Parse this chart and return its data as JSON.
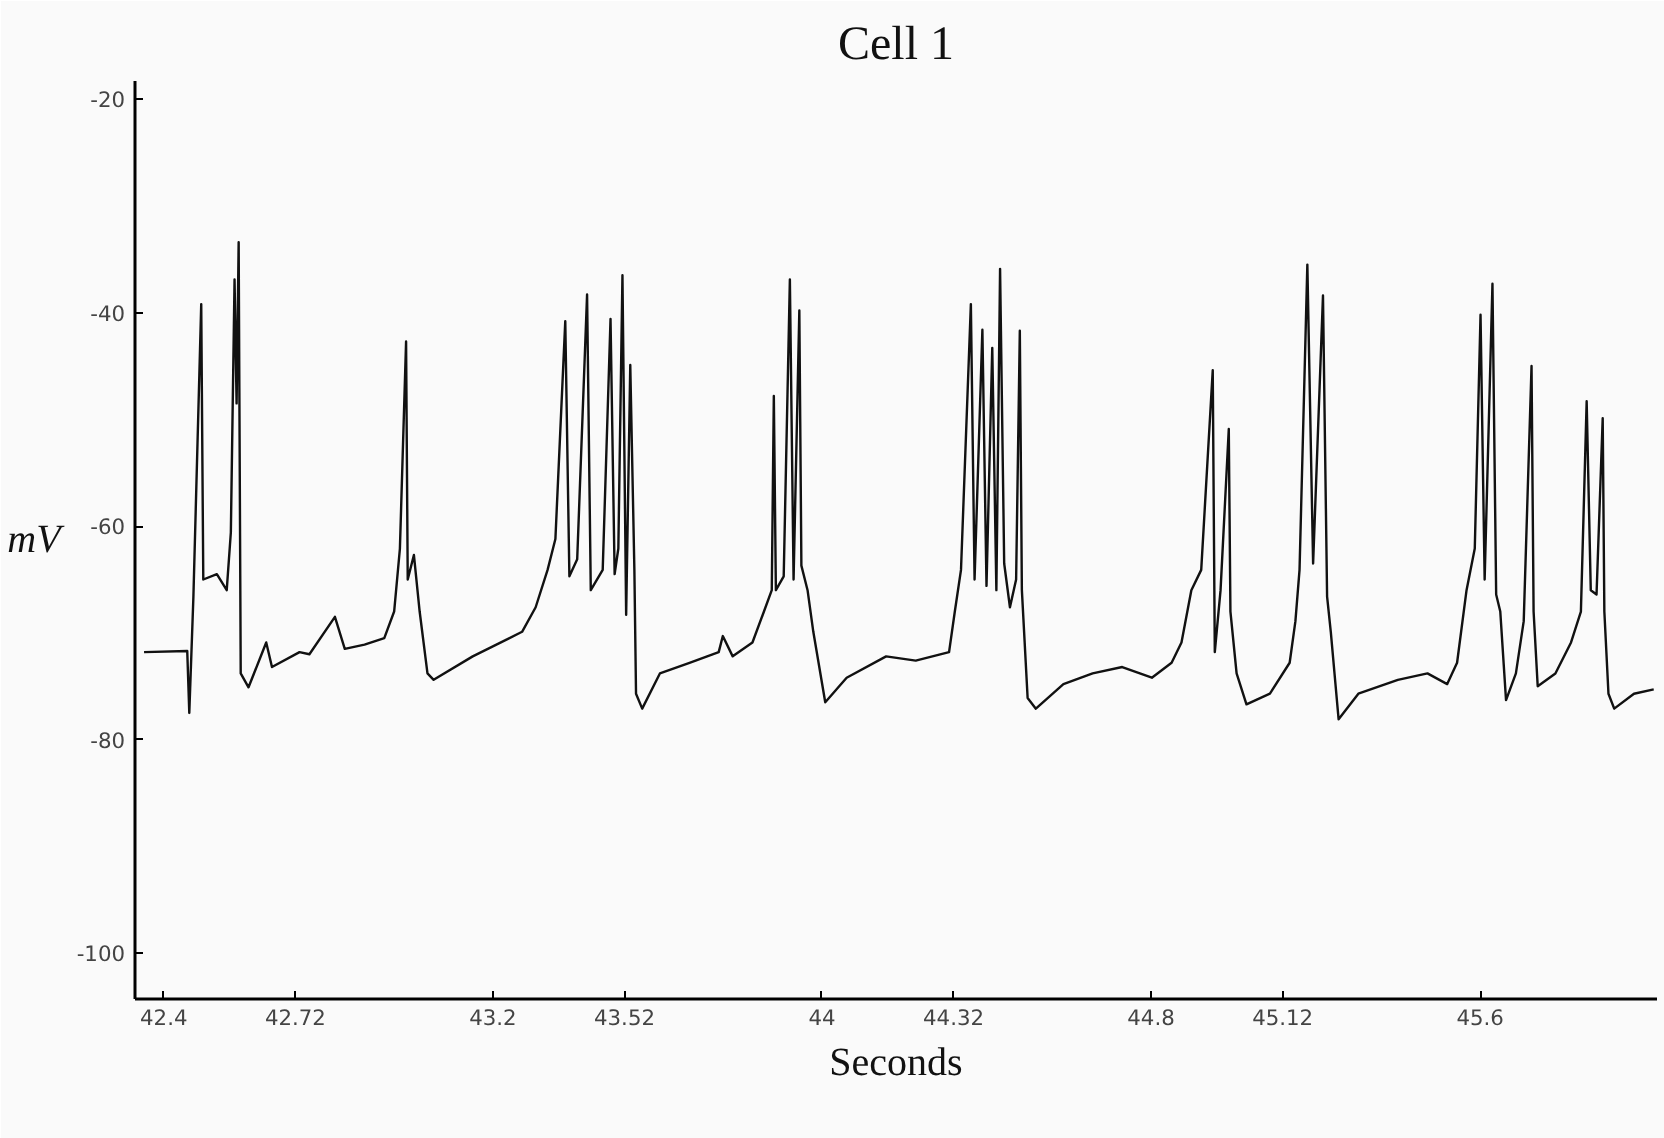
{
  "chart_data": {
    "type": "line",
    "title": "Cell 1",
    "xlabel": "Seconds",
    "ylabel": "mV",
    "xlim": [
      42.33,
      46.03
    ],
    "ylim": [
      -104.3,
      -18.3
    ],
    "xticks": [
      42.4,
      42.72,
      43.2,
      43.52,
      44,
      44.32,
      44.8,
      45.12,
      45.6
    ],
    "yticks": [
      -20,
      -40,
      -60,
      -80,
      -100
    ],
    "grid": false,
    "marker": "none",
    "line_style": "solid",
    "series": [
      {
        "color": "#111111",
        "x": [
          42.352,
          42.457,
          42.462,
          42.472,
          42.491,
          42.496,
          42.529,
          42.553,
          42.563,
          42.572,
          42.577,
          42.582,
          42.587,
          42.606,
          42.649,
          42.663,
          42.73,
          42.754,
          42.816,
          42.84,
          42.888,
          42.936,
          42.96,
          42.974,
          42.989,
          42.993,
          43.008,
          43.022,
          43.041,
          43.056,
          43.151,
          43.271,
          43.304,
          43.333,
          43.352,
          43.376,
          43.386,
          43.405,
          43.429,
          43.438,
          43.467,
          43.486,
          43.496,
          43.505,
          43.515,
          43.524,
          43.534,
          43.544,
          43.548,
          43.563,
          43.606,
          43.678,
          43.749,
          43.759,
          43.783,
          43.831,
          43.859,
          43.878,
          43.883,
          43.888,
          43.907,
          43.922,
          43.931,
          43.945,
          43.95,
          43.965,
          43.979,
          44.008,
          44.06,
          44.156,
          44.228,
          44.309,
          44.323,
          44.338,
          44.362,
          44.371,
          44.39,
          44.4,
          44.414,
          44.424,
          44.433,
          44.443,
          44.457,
          44.472,
          44.481,
          44.486,
          44.5,
          44.52,
          44.587,
          44.658,
          44.73,
          44.802,
          44.85,
          44.874,
          44.898,
          44.922,
          44.95,
          44.955,
          44.969,
          44.989,
          44.993,
          45.008,
          45.032,
          45.089,
          45.137,
          45.151,
          45.161,
          45.18,
          45.194,
          45.218,
          45.228,
          45.237,
          45.256,
          45.304,
          45.4,
          45.472,
          45.52,
          45.544,
          45.567,
          45.587,
          45.601,
          45.611,
          45.63,
          45.639,
          45.649,
          45.663,
          45.687,
          45.706,
          45.725,
          45.73,
          45.74,
          45.783,
          45.821,
          45.845,
          45.859,
          45.869,
          45.883,
          45.898,
          45.902,
          45.912,
          45.926,
          45.974,
          46.022
        ],
        "values": [
          -71.8,
          -71.7,
          -77.5,
          -66.6,
          -39.2,
          -65.0,
          -64.5,
          -66.0,
          -60.6,
          -36.9,
          -48.5,
          -33.4,
          -73.8,
          -75.1,
          -70.9,
          -73.2,
          -71.8,
          -72.0,
          -68.5,
          -71.5,
          -71.1,
          -70.5,
          -68.0,
          -62.1,
          -42.7,
          -65.0,
          -62.7,
          -68.0,
          -73.8,
          -74.4,
          -72.2,
          -69.9,
          -67.6,
          -64.1,
          -61.2,
          -40.8,
          -64.7,
          -63.1,
          -38.3,
          -66.0,
          -64.1,
          -40.6,
          -64.5,
          -62.1,
          -36.5,
          -68.3,
          -44.9,
          -64.1,
          -75.7,
          -77.1,
          -73.8,
          -72.8,
          -71.8,
          -70.3,
          -72.2,
          -70.9,
          -68.0,
          -66.0,
          -47.8,
          -66.0,
          -64.7,
          -36.9,
          -65.0,
          -39.8,
          -63.7,
          -66.0,
          -69.9,
          -76.5,
          -74.2,
          -72.2,
          -72.6,
          -71.8,
          -68.0,
          -64.1,
          -39.2,
          -65.0,
          -41.6,
          -65.6,
          -43.3,
          -66.0,
          -35.9,
          -63.5,
          -67.6,
          -65.0,
          -41.7,
          -66.0,
          -76.1,
          -77.1,
          -74.8,
          -73.8,
          -73.2,
          -74.2,
          -72.8,
          -70.9,
          -66.0,
          -64.1,
          -45.4,
          -71.8,
          -66.0,
          -50.9,
          -68.0,
          -73.8,
          -76.7,
          -75.7,
          -72.8,
          -68.9,
          -64.1,
          -35.5,
          -63.5,
          -38.4,
          -66.6,
          -69.9,
          -78.1,
          -75.7,
          -74.4,
          -73.8,
          -74.8,
          -72.8,
          -66.0,
          -62.1,
          -40.2,
          -65.0,
          -37.3,
          -66.4,
          -68.0,
          -76.3,
          -73.8,
          -68.9,
          -45.0,
          -68.0,
          -75.0,
          -73.8,
          -70.9,
          -68.0,
          -48.3,
          -66.0,
          -66.4,
          -49.9,
          -68.0,
          -75.7,
          -77.1,
          -75.7,
          -75.3
        ]
      }
    ]
  }
}
